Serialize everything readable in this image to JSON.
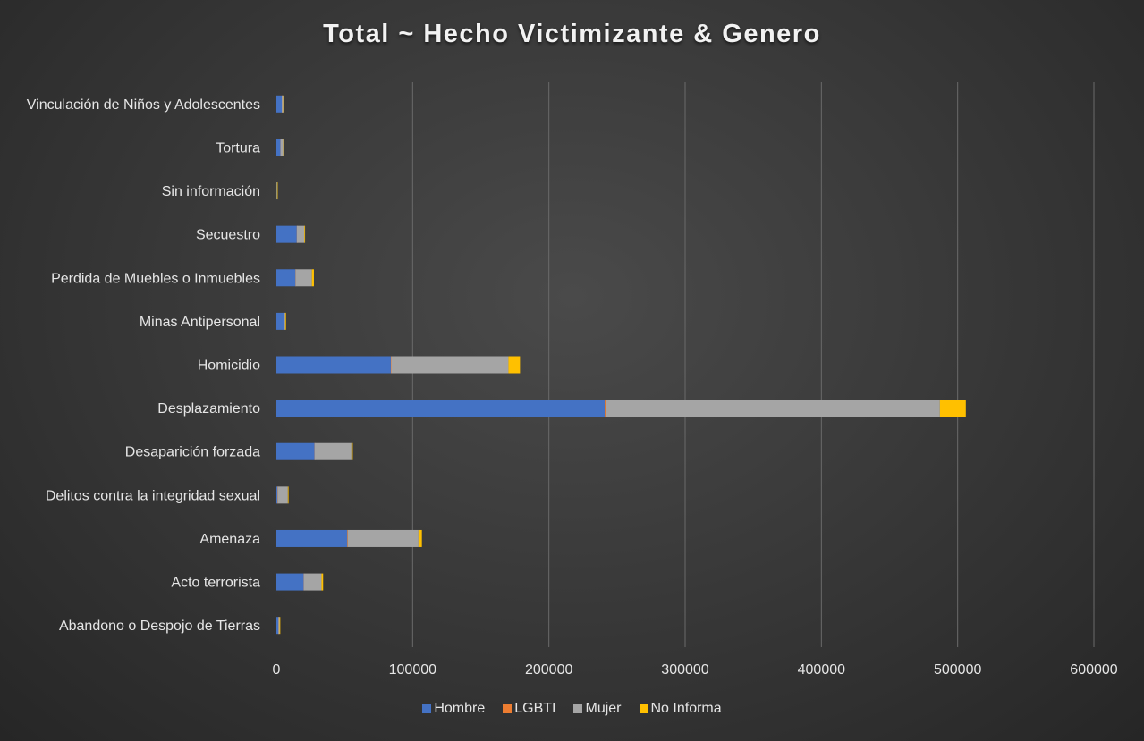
{
  "chart_data": {
    "type": "bar",
    "orientation": "horizontal",
    "stacked": true,
    "title": "Total ~ Hecho Victimizante & Genero",
    "categories": [
      "Abandono o Despojo de Tierras",
      "Acto terrorista",
      "Amenaza",
      "Delitos contra la integridad sexual",
      "Desaparición forzada",
      "Desplazamiento",
      "Homicidio",
      "Minas Antipersonal",
      "Perdida de Muebles o Inmuebles",
      "Secuestro",
      "Sin información",
      "Tortura",
      "Vinculación de Niños y Adolescentes"
    ],
    "series": [
      {
        "name": "Hombre",
        "color": "#4472c4",
        "values": [
          1500,
          20000,
          52000,
          800,
          28000,
          241000,
          84000,
          5500,
          14000,
          15000,
          300,
          3000,
          4000
        ]
      },
      {
        "name": "LGBTI",
        "color": "#ed7d31",
        "values": [
          20,
          100,
          300,
          100,
          50,
          1000,
          300,
          10,
          50,
          20,
          0,
          50,
          20
        ]
      },
      {
        "name": "Mujer",
        "color": "#a5a5a5",
        "values": [
          800,
          13000,
          52000,
          7500,
          27000,
          245000,
          86000,
          1000,
          12000,
          5500,
          100,
          2000,
          1000
        ]
      },
      {
        "name": "No Informa",
        "color": "#ffc000",
        "values": [
          100,
          1200,
          2500,
          500,
          1000,
          19000,
          8500,
          200,
          1500,
          500,
          50,
          200,
          200
        ]
      }
    ],
    "xlim": [
      0,
      600000
    ],
    "xticks": [
      "0",
      "100000",
      "200000",
      "300000",
      "400000",
      "500000",
      "600000"
    ],
    "grid": true,
    "legend_position": "bottom"
  }
}
